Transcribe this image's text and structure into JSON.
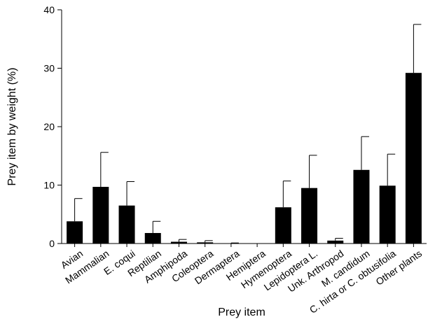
{
  "chart_data": {
    "type": "bar",
    "title": "",
    "xlabel": "Prey item",
    "ylabel": "Prey item by weight (%)",
    "ylim": [
      0,
      40
    ],
    "yticks": [
      0,
      10,
      20,
      30,
      40
    ],
    "grid": false,
    "legend": "none",
    "bar_color": "#000000",
    "error_bars": "upper",
    "categories": [
      "Avian",
      "Mammalian",
      "E. coqui",
      "Reptilian",
      "Amphipoda",
      "Coleoptera",
      "Dermaptera",
      "Hemiptera",
      "Hymenoptera",
      "Lepidoptera L.",
      "Unk. Arthropod",
      "M. candidum",
      "C. hirta or C. obtusifolia",
      "Other plants"
    ],
    "series": [
      {
        "values": [
          3.8,
          9.7,
          6.5,
          1.8,
          0.3,
          0.2,
          0.05,
          0.0,
          6.2,
          9.5,
          0.5,
          12.6,
          9.9,
          29.2
        ],
        "error_upper": [
          7.7,
          15.6,
          10.6,
          3.8,
          0.7,
          0.5,
          0.1,
          0.0,
          10.7,
          15.1,
          0.9,
          18.3,
          15.3,
          37.5
        ]
      }
    ]
  }
}
